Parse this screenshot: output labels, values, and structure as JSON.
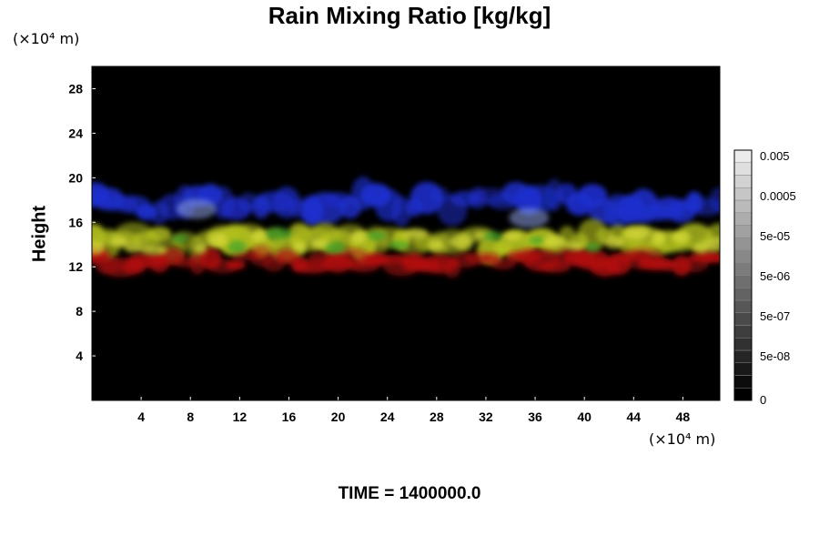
{
  "chart_data": {
    "type": "heatmap",
    "title": "Rain Mixing Ratio [kg/kg]",
    "ylabel": "Height",
    "x_unit": "(×10⁴ m)",
    "y_unit": "(×10⁴ m)",
    "xlim": [
      0,
      51
    ],
    "ylim": [
      0,
      30
    ],
    "x_ticks": [
      4,
      8,
      12,
      16,
      20,
      24,
      28,
      32,
      36,
      40,
      44,
      48
    ],
    "y_ticks": [
      4,
      8,
      12,
      16,
      20,
      24,
      28
    ],
    "colorbar": {
      "levels": 20,
      "labels": [
        "0.005",
        "0.0005",
        "5e-05",
        "5e-06",
        "5e-07",
        "5e-08",
        "0"
      ]
    },
    "bands": [
      {
        "color": "#1e2fcf",
        "y_range": [
          16.2,
          19.2
        ]
      },
      {
        "color": "#b2c01e",
        "y_range": [
          12.8,
          15.6
        ]
      },
      {
        "color": "#b51212",
        "y_range": [
          11.5,
          13.4
        ]
      }
    ],
    "footer": "TIME = 1400000.0"
  }
}
